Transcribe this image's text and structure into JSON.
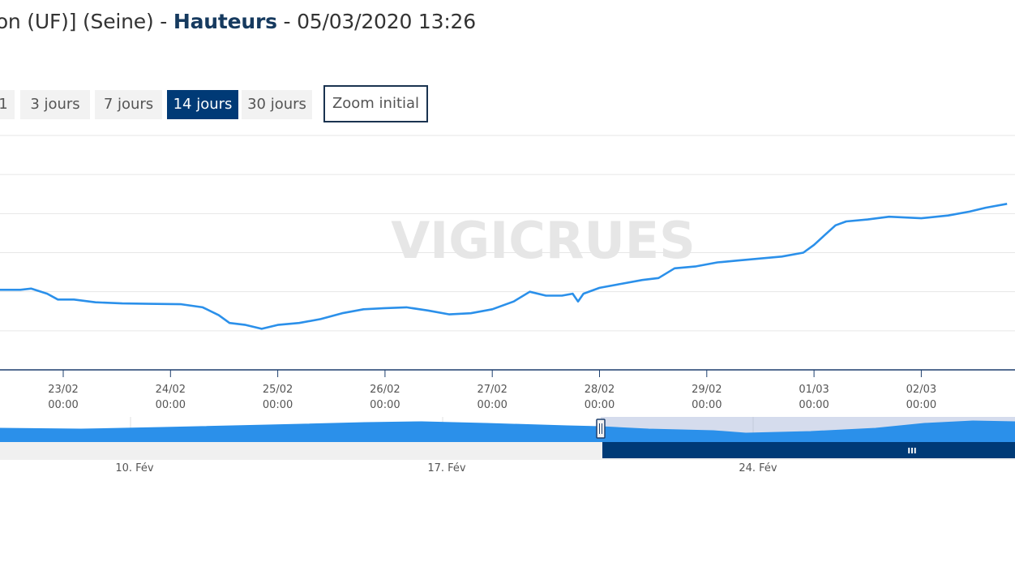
{
  "header": {
    "title_prefix": "son (UF)] (Seine) - ",
    "title_bold": "Hauteurs",
    "title_suffix": " - 05/03/2020 13:26"
  },
  "range_selector": {
    "buttons": [
      "1",
      "3 jours",
      "7 jours",
      "14 jours",
      "30 jours"
    ],
    "active": "14 jours",
    "zoom_label": "Zoom initial"
  },
  "watermark": "VIGICRUES",
  "colors": {
    "series": "#2b90ea",
    "active_button": "#003a76",
    "navigator_fill": "#2b90ea",
    "navigator_selected_bg": "#d5dced",
    "scrollbar": "#003a76"
  },
  "chart_data": {
    "type": "line",
    "grid": true,
    "x_ticks": [
      [
        "23/02",
        "00:00"
      ],
      [
        "24/02",
        "00:00"
      ],
      [
        "25/02",
        "00:00"
      ],
      [
        "26/02",
        "00:00"
      ],
      [
        "27/02",
        "00:00"
      ],
      [
        "28/02",
        "00:00"
      ],
      [
        "29/02",
        "00:00"
      ],
      [
        "01/03",
        "00:00"
      ],
      [
        "02/03",
        "00:00"
      ]
    ],
    "x_day_range": [
      -0.6,
      8.8
    ],
    "y_range": [
      0,
      6
    ],
    "series": [
      {
        "points": [
          [
            -0.6,
            2.05
          ],
          [
            -0.4,
            2.05
          ],
          [
            -0.3,
            2.08
          ],
          [
            -0.15,
            1.95
          ],
          [
            -0.05,
            1.8
          ],
          [
            0.1,
            1.8
          ],
          [
            0.3,
            1.73
          ],
          [
            0.55,
            1.7
          ],
          [
            0.8,
            1.69
          ],
          [
            1.1,
            1.68
          ],
          [
            1.3,
            1.6
          ],
          [
            1.45,
            1.4
          ],
          [
            1.55,
            1.2
          ],
          [
            1.7,
            1.15
          ],
          [
            1.85,
            1.05
          ],
          [
            2.0,
            1.15
          ],
          [
            2.2,
            1.2
          ],
          [
            2.4,
            1.3
          ],
          [
            2.6,
            1.45
          ],
          [
            2.8,
            1.55
          ],
          [
            3.0,
            1.58
          ],
          [
            3.2,
            1.6
          ],
          [
            3.4,
            1.52
          ],
          [
            3.6,
            1.42
          ],
          [
            3.8,
            1.45
          ],
          [
            4.0,
            1.55
          ],
          [
            4.2,
            1.75
          ],
          [
            4.35,
            2.0
          ],
          [
            4.5,
            1.9
          ],
          [
            4.65,
            1.9
          ],
          [
            4.75,
            1.95
          ],
          [
            4.8,
            1.75
          ],
          [
            4.85,
            1.95
          ],
          [
            5.0,
            2.1
          ],
          [
            5.2,
            2.2
          ],
          [
            5.4,
            2.3
          ],
          [
            5.55,
            2.35
          ],
          [
            5.7,
            2.6
          ],
          [
            5.9,
            2.65
          ],
          [
            6.1,
            2.75
          ],
          [
            6.3,
            2.8
          ],
          [
            6.5,
            2.85
          ],
          [
            6.7,
            2.9
          ],
          [
            6.9,
            3.0
          ],
          [
            7.0,
            3.2
          ],
          [
            7.1,
            3.45
          ],
          [
            7.2,
            3.7
          ],
          [
            7.3,
            3.8
          ],
          [
            7.5,
            3.85
          ],
          [
            7.7,
            3.92
          ],
          [
            8.0,
            3.88
          ],
          [
            8.25,
            3.95
          ],
          [
            8.45,
            4.05
          ],
          [
            8.6,
            4.15
          ],
          [
            8.8,
            4.25
          ]
        ]
      }
    ],
    "navigator": {
      "labels": [
        "10. Fév",
        "17. Fév",
        "24. Fév"
      ],
      "handle_label": "III"
    }
  }
}
